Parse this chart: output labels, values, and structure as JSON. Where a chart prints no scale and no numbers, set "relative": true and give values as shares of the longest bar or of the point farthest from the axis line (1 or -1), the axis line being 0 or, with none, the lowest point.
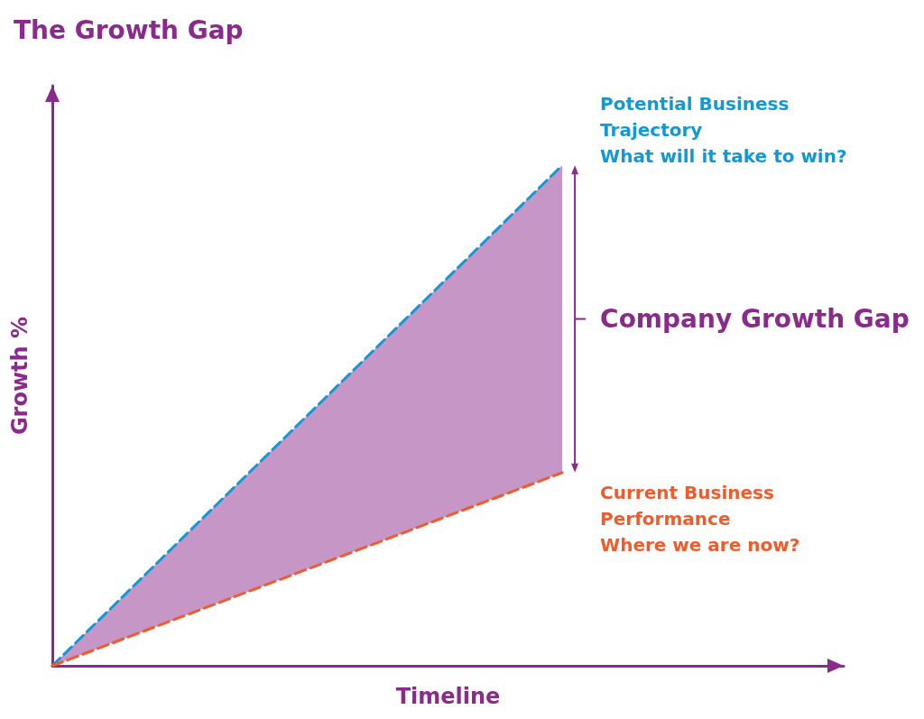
{
  "chart_data": {
    "type": "line",
    "title": "The Growth Gap",
    "xlabel": "Timeline",
    "ylabel": "Growth %",
    "relative": true,
    "categories": [
      null,
      null
    ],
    "line_style": "dashed",
    "marker": "none",
    "grid": false,
    "series": [
      {
        "color": "#1199d6",
        "values": [
          0,
          1
        ],
        "lower": [
          0,
          0.386
        ],
        "upper": [
          0,
          1
        ]
      },
      {
        "color": "#f15a2b",
        "values": [
          0,
          0.386
        ]
      }
    ],
    "annotations": [
      "Potential Business\nTrajectory\nWhat will it take to win?",
      "Company Growth Gap",
      "Current Business\nPerformance\nWhere we are now?"
    ]
  }
}
